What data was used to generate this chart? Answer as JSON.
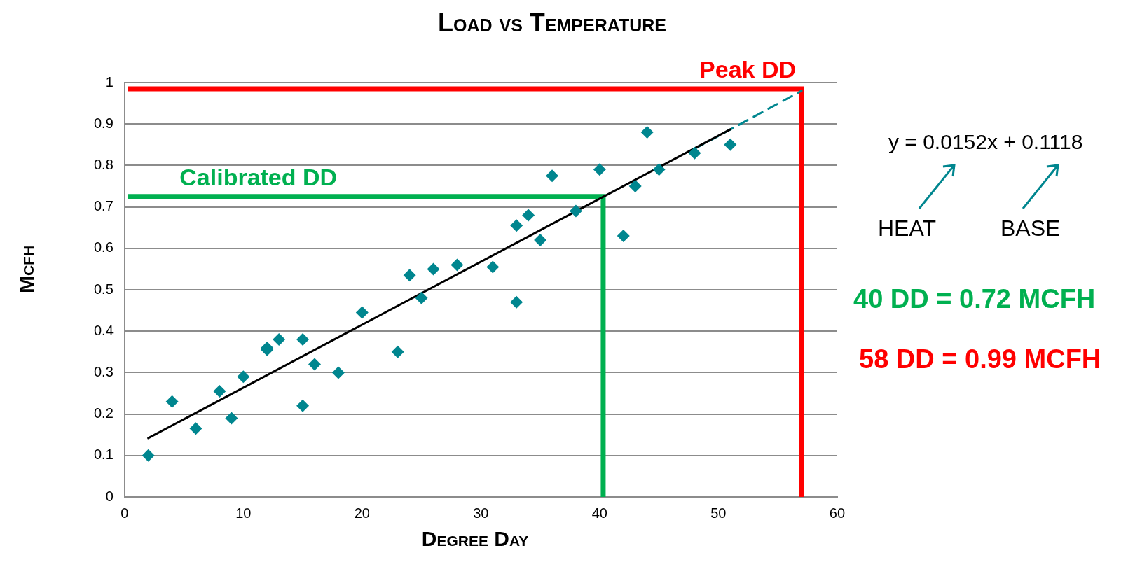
{
  "chart_data": {
    "type": "scatter",
    "title": "Load vs Temperature",
    "xlabel": "Degree Day",
    "ylabel": "Mcfh",
    "xlim": [
      0,
      60
    ],
    "xticks": [
      0,
      10,
      20,
      30,
      40,
      50,
      60
    ],
    "ylim": [
      0,
      1
    ],
    "yticks": [
      0,
      0.1,
      0.2,
      0.3,
      0.4,
      0.5,
      0.6,
      0.7,
      0.8,
      0.9,
      1
    ],
    "grid": "y",
    "legend": false,
    "series": [
      {
        "marker": "diamond",
        "color": "#00868f",
        "x": [
          2,
          4,
          6,
          8,
          9,
          10,
          12,
          12,
          13,
          15,
          15,
          16,
          18,
          20,
          23,
          24,
          25,
          26,
          28,
          31,
          33,
          33,
          34,
          35,
          36,
          38,
          40,
          42,
          43,
          44,
          45,
          48,
          51
        ],
        "values": [
          0.1,
          0.23,
          0.165,
          0.255,
          0.19,
          0.29,
          0.355,
          0.36,
          0.38,
          0.38,
          0.22,
          0.32,
          0.3,
          0.445,
          0.35,
          0.535,
          0.48,
          0.55,
          0.56,
          0.555,
          0.655,
          0.47,
          0.68,
          0.62,
          0.775,
          0.69,
          0.79,
          0.63,
          0.75,
          0.88,
          0.79,
          0.83,
          0.85
        ]
      },
      {
        "type": "line",
        "color": "#000000",
        "x": [
          2,
          51
        ],
        "values": [
          0.142,
          0.887
        ]
      },
      {
        "type": "line",
        "color": "#00868f",
        "line_style": "dashed",
        "x": [
          48,
          57
        ],
        "values": [
          0.84,
          0.98
        ]
      },
      {
        "type": "line",
        "name": "Peak DD",
        "color": "#ff0000",
        "x": [
          0.5,
          57,
          57
        ],
        "values": [
          0.985,
          0.985,
          0
        ]
      },
      {
        "type": "line",
        "name": "Calibrated DD",
        "color": "#00b050",
        "x": [
          0.5,
          40.3,
          40.3
        ],
        "values": [
          0.725,
          0.725,
          0
        ]
      }
    ],
    "annotations": [
      "y = 0.0152x + 0.1118",
      "HEAT",
      "BASE",
      "40 DD = 0.72 MCFH",
      "58 DD = 0.99 MCFH"
    ]
  }
}
